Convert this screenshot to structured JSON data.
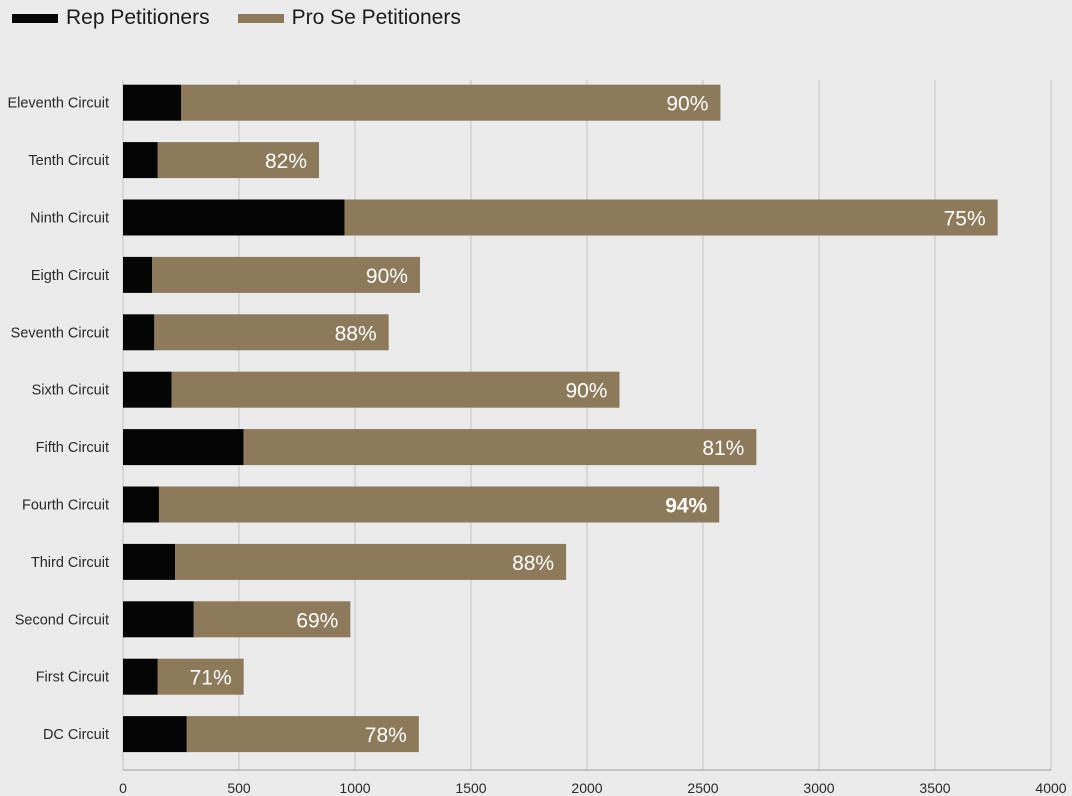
{
  "legend": {
    "rep_label": "Rep Petitioners",
    "prose_label": "Pro Se Petitioners"
  },
  "colors": {
    "rep": "#050505",
    "prose": "#8c7a5a",
    "grid": "#c6c6c6",
    "background": "#ebebeb"
  },
  "chart_data": {
    "type": "bar",
    "orientation": "horizontal",
    "stacked": true,
    "categories": [
      "Eleventh Circuit",
      "Tenth Circuit",
      "Ninth Circuit",
      "Eigth Circuit",
      "Seventh Circuit",
      "Sixth Circuit",
      "Fifth Circuit",
      "Fourth Circuit",
      "Third Circuit",
      "Second Circuit",
      "First Circuit",
      "DC Circuit"
    ],
    "series": [
      {
        "name": "Rep Petitioners",
        "values": [
          250,
          150,
          955,
          125,
          135,
          210,
          520,
          155,
          225,
          305,
          150,
          275
        ]
      },
      {
        "name": "Pro Se Petitioners",
        "values": [
          2325,
          695,
          2815,
          1155,
          1010,
          1930,
          2210,
          2415,
          1685,
          675,
          370,
          1000
        ]
      }
    ],
    "bar_labels": [
      "90%",
      "82%",
      "75%",
      "90%",
      "88%",
      "90%",
      "81%",
      "94%",
      "88%",
      "69%",
      "71%",
      "78%"
    ],
    "bold_labels": [
      false,
      false,
      false,
      false,
      false,
      false,
      false,
      true,
      false,
      false,
      false,
      false
    ],
    "xticks": [
      0,
      500,
      1000,
      1500,
      2000,
      2500,
      3000,
      3500,
      4000
    ],
    "xlim": [
      0,
      4000
    ],
    "grid": true,
    "legend_position": "top-left",
    "title": "",
    "xlabel": "",
    "ylabel": ""
  }
}
